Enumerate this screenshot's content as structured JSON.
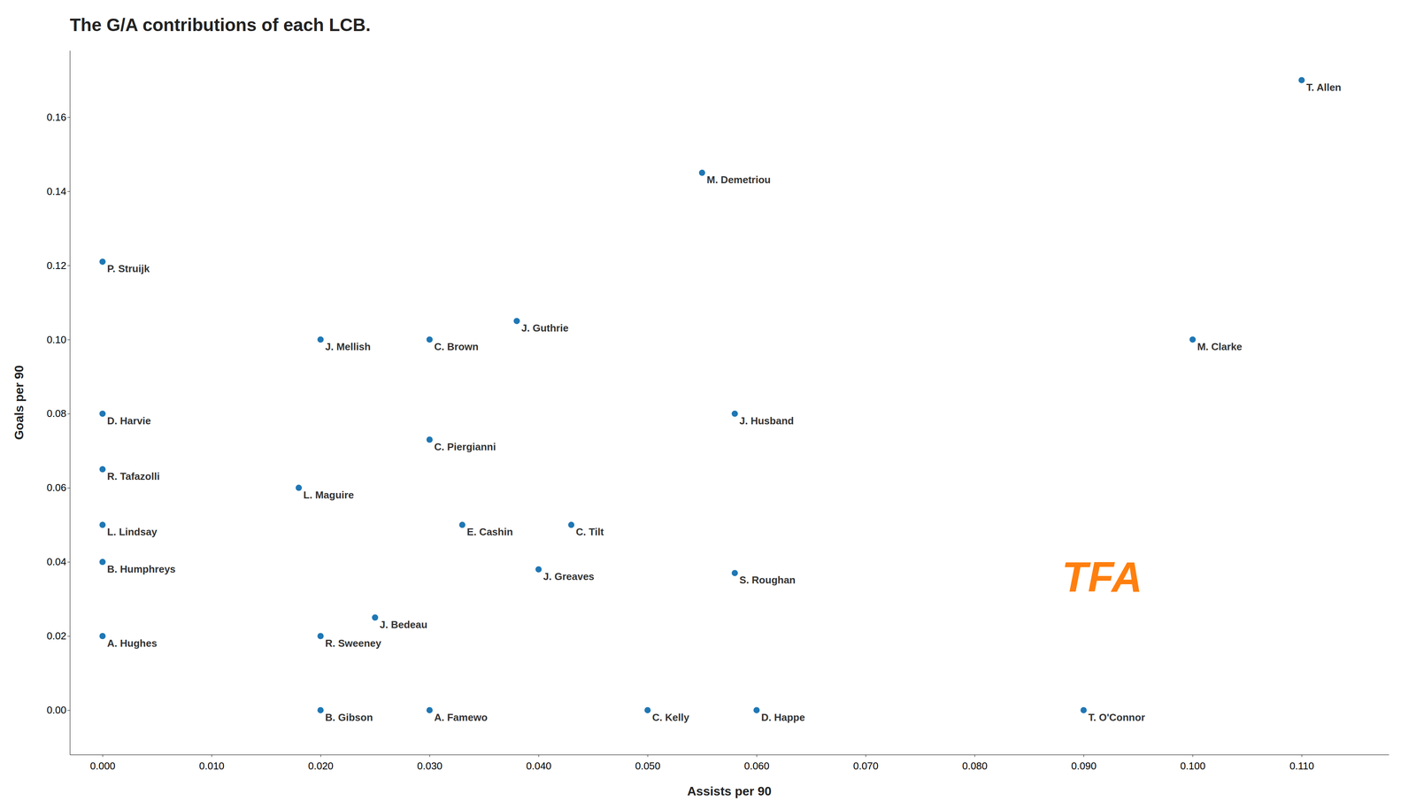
{
  "chart_data": {
    "type": "scatter",
    "title": "The G/A contributions of each LCB.",
    "xlabel": "Assists per 90",
    "ylabel": "Goals per 90",
    "xlim": [
      -0.003,
      0.118
    ],
    "ylim": [
      -0.012,
      0.178
    ],
    "xticks": [
      {
        "value": 0,
        "label": "0.000"
      },
      {
        "value": 0.01,
        "label": "0.010"
      },
      {
        "value": 0.02,
        "label": "0.020"
      },
      {
        "value": 0.03,
        "label": "0.030"
      },
      {
        "value": 0.04,
        "label": "0.040"
      },
      {
        "value": 0.05,
        "label": "0.050"
      },
      {
        "value": 0.06,
        "label": "0.060"
      },
      {
        "value": 0.07,
        "label": "0.070"
      },
      {
        "value": 0.08,
        "label": "0.080"
      },
      {
        "value": 0.09,
        "label": "0.090"
      },
      {
        "value": 0.1,
        "label": "0.100"
      },
      {
        "value": 0.11,
        "label": "0.110"
      }
    ],
    "yticks": [
      {
        "value": 0,
        "label": "0.00"
      },
      {
        "value": 0.02,
        "label": "0.02"
      },
      {
        "value": 0.04,
        "label": "0.04"
      },
      {
        "value": 0.06,
        "label": "0.06"
      },
      {
        "value": 0.08,
        "label": "0.08"
      },
      {
        "value": 0.1,
        "label": "0.10"
      },
      {
        "value": 0.12,
        "label": "0.12"
      },
      {
        "value": 0.14,
        "label": "0.14"
      },
      {
        "value": 0.16,
        "label": "0.16"
      }
    ],
    "labels": [
      "T. Allen",
      "M. Demetriou",
      "P. Struijk",
      "J. Guthrie",
      "J. Mellish",
      "C. Brown",
      "M. Clarke",
      "D. Harvie",
      "C. Piergianni",
      "J. Husband",
      "R. Tafazolli",
      "L. Maguire",
      "E. Cashin",
      "C. Tilt",
      "L. Lindsay",
      "B. Humphreys",
      "S. Roughan",
      "J. Greaves",
      "J. Bedeau",
      "A. Hughes",
      "R. Sweeney",
      "B. Gibson",
      "A. Famewo",
      "C. Kelly",
      "D. Happe",
      "T. O'Connor"
    ],
    "x": [
      0.11,
      0.055,
      0,
      0.038,
      0.02,
      0.03,
      0.1,
      0,
      0.03,
      0.058,
      0,
      0.018,
      0.033,
      0.043,
      0,
      0,
      0.058,
      0.04,
      0.025,
      0,
      0.02,
      0.02,
      0.03,
      0.05,
      0.06,
      0.09
    ],
    "values": [
      0.17,
      0.145,
      0.121,
      0.105,
      0.1,
      0.1,
      0.1,
      0.08,
      0.073,
      0.08,
      0.065,
      0.06,
      0.05,
      0.05,
      0.05,
      0.04,
      0.037,
      0.038,
      0.025,
      0.02,
      0.02,
      0,
      0,
      0,
      0,
      0
    ],
    "annotations": [
      {
        "text": "TFA",
        "x": 0.088,
        "y": 0.032
      }
    ],
    "grid": false
  }
}
